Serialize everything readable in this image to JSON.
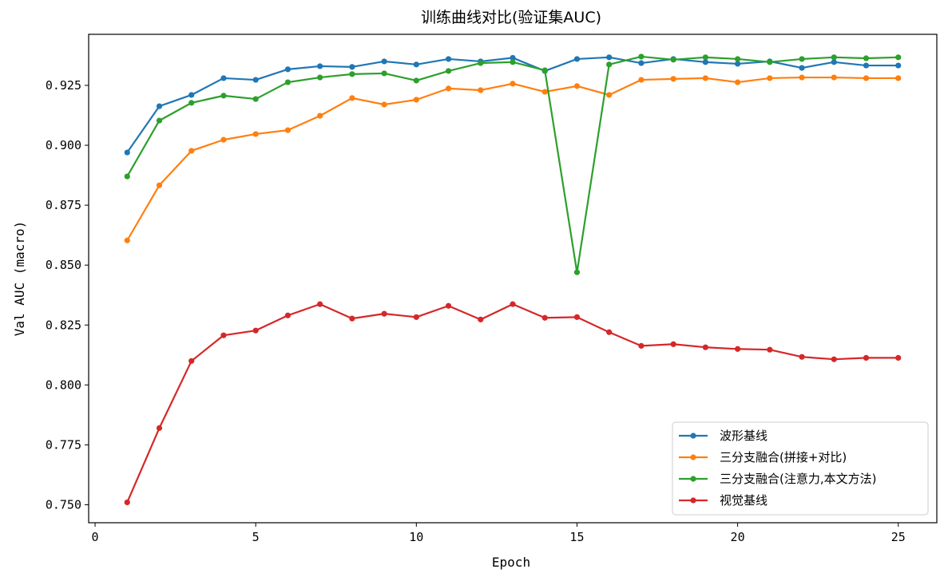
{
  "chart_data": {
    "type": "line",
    "title": "训练曲线对比(验证集AUC)",
    "xlabel": "Epoch",
    "ylabel": "Val AUC (macro)",
    "xlim": [
      -0.2,
      26.2
    ],
    "ylim": [
      0.7425,
      0.9463
    ],
    "xticks": [
      0,
      5,
      10,
      15,
      20,
      25
    ],
    "yticks": [
      0.75,
      0.775,
      0.8,
      0.825,
      0.85,
      0.875,
      0.9,
      0.925
    ],
    "ytick_labels": [
      "0.750",
      "0.775",
      "0.800",
      "0.825",
      "0.850",
      "0.875",
      "0.900",
      "0.925"
    ],
    "grid": false,
    "legend_position": "lower-right",
    "x": [
      1,
      2,
      3,
      4,
      5,
      6,
      7,
      8,
      9,
      10,
      11,
      12,
      13,
      14,
      15,
      16,
      17,
      18,
      19,
      20,
      21,
      22,
      23,
      24,
      25
    ],
    "series": [
      {
        "name": "波形基线",
        "color": "#1f77b4",
        "values": [
          0.897,
          0.9163,
          0.921,
          0.928,
          0.9273,
          0.9317,
          0.933,
          0.9327,
          0.935,
          0.9337,
          0.936,
          0.935,
          0.9365,
          0.931,
          0.936,
          0.9367,
          0.9343,
          0.936,
          0.9347,
          0.934,
          0.935,
          0.9323,
          0.9347,
          0.9333,
          0.9333
        ]
      },
      {
        "name": "三分支融合(拼接+对比)",
        "color": "#ff7f0e",
        "values": [
          0.8603,
          0.8833,
          0.8977,
          0.9023,
          0.9047,
          0.9063,
          0.9123,
          0.9197,
          0.917,
          0.919,
          0.9237,
          0.923,
          0.9257,
          0.9223,
          0.9247,
          0.921,
          0.9273,
          0.9277,
          0.928,
          0.9263,
          0.928,
          0.9283,
          0.9283,
          0.928,
          0.928
        ]
      },
      {
        "name": "三分支融合(注意力,本文方法)",
        "color": "#2ca02c",
        "values": [
          0.887,
          0.9103,
          0.9177,
          0.9207,
          0.9193,
          0.9263,
          0.9283,
          0.9297,
          0.93,
          0.927,
          0.931,
          0.9343,
          0.9347,
          0.9313,
          0.847,
          0.9337,
          0.937,
          0.9357,
          0.9367,
          0.936,
          0.9347,
          0.936,
          0.9367,
          0.9363,
          0.9367
        ]
      },
      {
        "name": "视觉基线",
        "color": "#d62728",
        "values": [
          0.751,
          0.782,
          0.81,
          0.8207,
          0.8227,
          0.829,
          0.8337,
          0.8277,
          0.8297,
          0.8283,
          0.833,
          0.8273,
          0.8337,
          0.828,
          0.8283,
          0.822,
          0.8163,
          0.817,
          0.8157,
          0.815,
          0.8147,
          0.8117,
          0.8107,
          0.8113,
          0.8113
        ]
      }
    ]
  }
}
